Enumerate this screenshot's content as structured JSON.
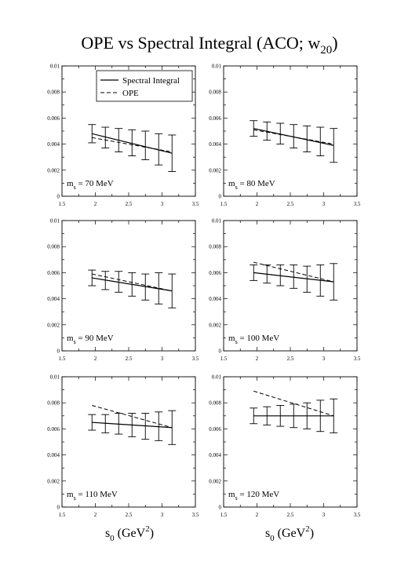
{
  "figure": {
    "title": "OPE vs Spectral Integral (ACO; w",
    "title_sub": "20",
    "title_close": ")"
  },
  "xlabels": [
    {
      "s": "s",
      "sub": "0",
      "unit": " (GeV",
      "sup": "2",
      "close": ")"
    },
    {
      "s": "s",
      "sub": "0",
      "unit": " (GeV",
      "sup": "2",
      "close": ")"
    }
  ],
  "chart_data": [
    {
      "type": "line",
      "panel": "row1-col1",
      "annotation": {
        "m": "m",
        "sub": "s",
        "text": " = 70 MeV"
      },
      "legend": {
        "placement": "top-right",
        "entries": [
          "Spectral Integral",
          "OPE"
        ]
      },
      "xlim": [
        1.5,
        3.5
      ],
      "ylim": [
        0,
        0.01
      ],
      "xticks": [
        "1.5",
        "2",
        "2.5",
        "3",
        "3.5"
      ],
      "yticks": [
        "0",
        "0.002",
        "0.004",
        "0.006",
        "0.008",
        "0.01"
      ],
      "series": [
        {
          "name": "Spectral Integral",
          "style": "solid",
          "x": [
            1.95,
            3.15
          ],
          "y": [
            0.0048,
            0.0033
          ]
        },
        {
          "name": "OPE",
          "style": "dashed",
          "x": [
            1.95,
            3.15
          ],
          "y": [
            0.0045,
            0.0034
          ]
        }
      ],
      "errorbars": {
        "x": [
          1.95,
          2.15,
          2.35,
          2.55,
          2.75,
          2.95,
          3.15
        ],
        "y": [
          0.0048,
          0.0045,
          0.0043,
          0.0041,
          0.0039,
          0.0036,
          0.0033
        ],
        "err": [
          0.0007,
          0.0008,
          0.0009,
          0.001,
          0.0011,
          0.0012,
          0.0014
        ]
      }
    },
    {
      "type": "line",
      "panel": "row1-col2",
      "annotation": {
        "m": "m",
        "sub": "s",
        "text": " = 80 MeV"
      },
      "xlim": [
        1.5,
        3.5
      ],
      "ylim": [
        0,
        0.01
      ],
      "xticks": [
        "1.5",
        "2",
        "2.5",
        "3",
        "3.5"
      ],
      "yticks": [
        "0",
        "0.002",
        "0.004",
        "0.006",
        "0.008",
        "0.01"
      ],
      "series": [
        {
          "style": "solid",
          "x": [
            1.95,
            3.15
          ],
          "y": [
            0.0052,
            0.0039
          ]
        },
        {
          "style": "dashed",
          "x": [
            1.95,
            3.15
          ],
          "y": [
            0.0051,
            0.004
          ]
        }
      ],
      "errorbars": {
        "x": [
          1.95,
          2.15,
          2.35,
          2.55,
          2.75,
          2.95,
          3.15
        ],
        "y": [
          0.0052,
          0.005,
          0.0048,
          0.0046,
          0.0044,
          0.0042,
          0.0039
        ],
        "err": [
          0.0006,
          0.0007,
          0.0008,
          0.0009,
          0.001,
          0.0011,
          0.0013
        ]
      }
    },
    {
      "type": "line",
      "panel": "row2-col1",
      "annotation": {
        "m": "m",
        "sub": "s",
        "text": " = 90 MeV"
      },
      "xlim": [
        1.5,
        3.5
      ],
      "ylim": [
        0,
        0.01
      ],
      "xticks": [
        "1.5",
        "2",
        "2.5",
        "3",
        "3.5"
      ],
      "yticks": [
        "0",
        "0.002",
        "0.004",
        "0.006",
        "0.008",
        "0.01"
      ],
      "series": [
        {
          "style": "solid",
          "x": [
            1.95,
            3.15
          ],
          "y": [
            0.0056,
            0.0046
          ]
        },
        {
          "style": "dashed",
          "x": [
            1.95,
            3.15
          ],
          "y": [
            0.0059,
            0.0046
          ]
        }
      ],
      "errorbars": {
        "x": [
          1.95,
          2.15,
          2.35,
          2.55,
          2.75,
          2.95,
          3.15
        ],
        "y": [
          0.0056,
          0.0054,
          0.0053,
          0.0051,
          0.0049,
          0.0048,
          0.0046
        ],
        "err": [
          0.0006,
          0.0007,
          0.0008,
          0.0009,
          0.001,
          0.0012,
          0.0013
        ]
      }
    },
    {
      "type": "line",
      "panel": "row2-col2",
      "annotation": {
        "m": "m",
        "sub": "s",
        "text": " = 100 MeV"
      },
      "xlim": [
        1.5,
        3.5
      ],
      "ylim": [
        0,
        0.01
      ],
      "xticks": [
        "1.5",
        "2",
        "2.5",
        "3",
        "3.5"
      ],
      "yticks": [
        "0",
        "0.002",
        "0.004",
        "0.006",
        "0.008",
        "0.01"
      ],
      "series": [
        {
          "style": "solid",
          "x": [
            1.95,
            3.15
          ],
          "y": [
            0.006,
            0.0053
          ]
        },
        {
          "style": "dashed",
          "x": [
            1.95,
            3.15
          ],
          "y": [
            0.0068,
            0.0053
          ]
        }
      ],
      "errorbars": {
        "x": [
          1.95,
          2.15,
          2.35,
          2.55,
          2.75,
          2.95,
          3.15
        ],
        "y": [
          0.006,
          0.0059,
          0.0058,
          0.0057,
          0.0055,
          0.0054,
          0.0053
        ],
        "err": [
          0.0006,
          0.0007,
          0.0008,
          0.0009,
          0.001,
          0.0012,
          0.0014
        ]
      }
    },
    {
      "type": "line",
      "panel": "row3-col1",
      "annotation": {
        "m": "m",
        "sub": "s",
        "text": " = 110 MeV"
      },
      "xlim": [
        1.5,
        3.5
      ],
      "ylim": [
        0,
        0.01
      ],
      "xticks": [
        "1.5",
        "2",
        "2.5",
        "3",
        "3.5"
      ],
      "yticks": [
        "0",
        "0.002",
        "0.004",
        "0.006",
        "0.008",
        "0.01"
      ],
      "series": [
        {
          "style": "solid",
          "x": [
            1.95,
            3.15
          ],
          "y": [
            0.0065,
            0.0061
          ]
        },
        {
          "style": "dashed",
          "x": [
            1.95,
            3.15
          ],
          "y": [
            0.0078,
            0.0061
          ]
        }
      ],
      "errorbars": {
        "x": [
          1.95,
          2.15,
          2.35,
          2.55,
          2.75,
          2.95,
          3.15
        ],
        "y": [
          0.0065,
          0.0064,
          0.0064,
          0.0063,
          0.0062,
          0.0062,
          0.0061
        ],
        "err": [
          0.0006,
          0.0007,
          0.0008,
          0.0009,
          0.001,
          0.0011,
          0.0013
        ]
      }
    },
    {
      "type": "line",
      "panel": "row3-col2",
      "annotation": {
        "m": "m",
        "sub": "s",
        "text": " = 120 MeV"
      },
      "xlim": [
        1.5,
        3.5
      ],
      "ylim": [
        0,
        0.01
      ],
      "xticks": [
        "1.5",
        "2",
        "2.5",
        "3",
        "3.5"
      ],
      "yticks": [
        "0",
        "0.002",
        "0.004",
        "0.006",
        "0.008",
        "0.01"
      ],
      "series": [
        {
          "style": "solid",
          "x": [
            1.95,
            3.15
          ],
          "y": [
            0.007,
            0.007
          ]
        },
        {
          "style": "dashed",
          "x": [
            1.95,
            3.15
          ],
          "y": [
            0.0089,
            0.007
          ]
        }
      ],
      "errorbars": {
        "x": [
          1.95,
          2.15,
          2.35,
          2.55,
          2.75,
          2.95,
          3.15
        ],
        "y": [
          0.007,
          0.007,
          0.007,
          0.007,
          0.007,
          0.007,
          0.007
        ],
        "err": [
          0.0006,
          0.0007,
          0.0008,
          0.0009,
          0.001,
          0.0012,
          0.0013
        ]
      }
    }
  ]
}
